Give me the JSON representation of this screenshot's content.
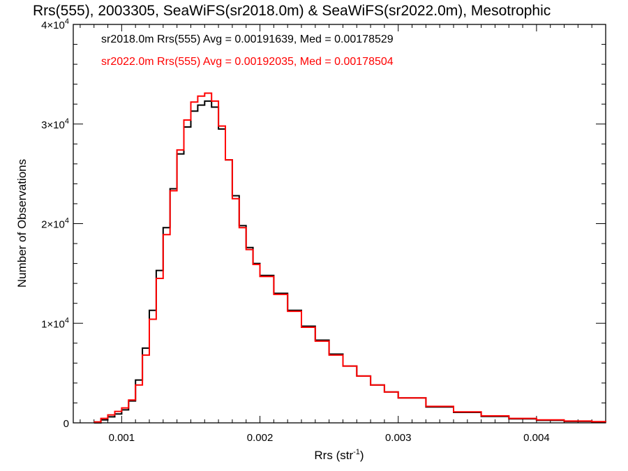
{
  "chart_data": {
    "type": "line",
    "title": "Rrs(555), 2003305, SeaWiFS(sr2018.0m) & SeaWiFS(sr2022.0m), Mesotrophic",
    "xlabel_main": "Rrs (str",
    "xlabel_sup": "-1",
    "xlabel_close": ")",
    "ylabel": "Number of Observations",
    "xlim": [
      0.00065,
      0.0045
    ],
    "ylim": [
      0,
      40000
    ],
    "xticks": [
      {
        "value": 0.001,
        "label": "0.001"
      },
      {
        "value": 0.002,
        "label": "0.002"
      },
      {
        "value": 0.003,
        "label": "0.003"
      },
      {
        "value": 0.004,
        "label": "0.004"
      }
    ],
    "yticks": [
      {
        "value": 0,
        "label": "0"
      },
      {
        "value": 10000,
        "mant": "1×10",
        "exp": "4"
      },
      {
        "value": 20000,
        "mant": "2×10",
        "exp": "4"
      },
      {
        "value": 30000,
        "mant": "3×10",
        "exp": "4"
      },
      {
        "value": 40000,
        "mant": "4×10",
        "exp": "4"
      }
    ],
    "series": [
      {
        "name": "sr2018.0m",
        "color": "#000000",
        "annotation": "sr2018.0m Rrs(555) Avg = 0.00191639, Med = 0.00178529",
        "x": [
          0.0008,
          0.00085,
          0.0009,
          0.00095,
          0.001,
          0.00105,
          0.0011,
          0.00115,
          0.0012,
          0.00125,
          0.0013,
          0.00135,
          0.0014,
          0.00145,
          0.0015,
          0.00155,
          0.0016,
          0.00165,
          0.0017,
          0.00175,
          0.0018,
          0.00185,
          0.0019,
          0.00195,
          0.002,
          0.0021,
          0.0022,
          0.0023,
          0.0024,
          0.0025,
          0.0026,
          0.0027,
          0.0028,
          0.0029,
          0.003,
          0.0032,
          0.0034,
          0.0036,
          0.0038,
          0.004,
          0.0042,
          0.0044,
          0.0045
        ],
        "y": [
          0,
          300,
          600,
          900,
          1300,
          2200,
          4300,
          7500,
          11300,
          15300,
          19600,
          23500,
          27000,
          29700,
          31300,
          31900,
          32300,
          31700,
          29500,
          26400,
          22800,
          19800,
          17600,
          16000,
          14800,
          13000,
          11300,
          9700,
          8300,
          6900,
          5700,
          4700,
          3800,
          3100,
          2500,
          1600,
          1050,
          650,
          400,
          250,
          150,
          100,
          80
        ]
      },
      {
        "name": "sr2022.0m",
        "color": "#ff0000",
        "annotation": "sr2022.0m Rrs(555) Avg = 0.00192035, Med = 0.00178504",
        "x": [
          0.0008,
          0.00085,
          0.0009,
          0.00095,
          0.001,
          0.00105,
          0.0011,
          0.00115,
          0.0012,
          0.00125,
          0.0013,
          0.00135,
          0.0014,
          0.00145,
          0.0015,
          0.00155,
          0.0016,
          0.00165,
          0.0017,
          0.00175,
          0.0018,
          0.00185,
          0.0019,
          0.00195,
          0.002,
          0.0021,
          0.0022,
          0.0023,
          0.0024,
          0.0025,
          0.0026,
          0.0027,
          0.0028,
          0.0029,
          0.003,
          0.0032,
          0.0034,
          0.0036,
          0.0038,
          0.004,
          0.0042,
          0.0044,
          0.0045
        ],
        "y": [
          100,
          450,
          800,
          1150,
          1500,
          2300,
          3800,
          6800,
          10400,
          14500,
          18900,
          23300,
          27400,
          30400,
          32200,
          32800,
          33100,
          32300,
          29800,
          26400,
          22500,
          19600,
          17400,
          15900,
          14700,
          12900,
          11200,
          9600,
          8200,
          6800,
          5700,
          4700,
          3800,
          3100,
          2500,
          1650,
          1100,
          700,
          450,
          300,
          180,
          120,
          90
        ]
      }
    ],
    "grid": false,
    "legend": "top-left"
  }
}
